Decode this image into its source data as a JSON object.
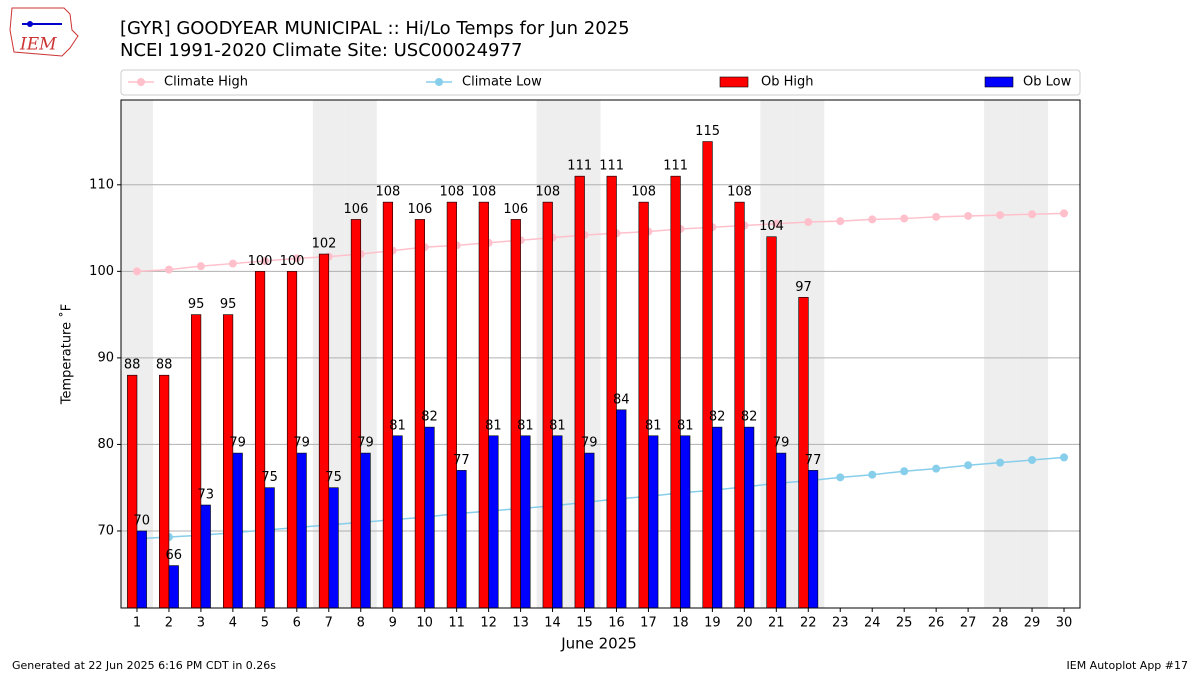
{
  "logo_text": "IEM",
  "chart_data": {
    "type": "bar",
    "title": "[GYR] GOODYEAR MUNICIPAL :: Hi/Lo Temps for Jun 2025",
    "subtitle": "NCEI 1991-2020 Climate Site: USC00024977",
    "x_label": "June 2025",
    "y_label": "Temperature ˚F",
    "footer_left": "Generated at 22 Jun 2025 6:16 PM CDT in 0.26s",
    "footer_right": "IEM Autoplot App #17",
    "x": [
      1,
      2,
      3,
      4,
      5,
      6,
      7,
      8,
      9,
      10,
      11,
      12,
      13,
      14,
      15,
      16,
      17,
      18,
      19,
      20,
      21,
      22,
      23,
      24,
      25,
      26,
      27,
      28,
      29,
      30
    ],
    "xlim": [
      0.5,
      30.5
    ],
    "xticks": [
      1,
      2,
      3,
      4,
      5,
      6,
      7,
      8,
      9,
      10,
      11,
      12,
      13,
      14,
      15,
      16,
      17,
      18,
      19,
      20,
      21,
      22,
      23,
      24,
      25,
      26,
      27,
      28,
      29,
      30
    ],
    "ylim": [
      61.1,
      119.8
    ],
    "yticks": [
      70,
      80,
      90,
      100,
      110
    ],
    "grid": true,
    "shaded_days": [
      1,
      7,
      8,
      14,
      15,
      21,
      22,
      28,
      29
    ],
    "series": [
      {
        "name": "Climate High",
        "type": "line",
        "color": "#ffc0cb",
        "values": [
          100.0,
          100.2,
          100.6,
          100.9,
          101.2,
          101.5,
          101.7,
          102.0,
          102.4,
          102.8,
          103.0,
          103.3,
          103.6,
          103.9,
          104.2,
          104.4,
          104.6,
          104.9,
          105.1,
          105.3,
          105.5,
          105.7,
          105.8,
          106.0,
          106.1,
          106.3,
          106.4,
          106.5,
          106.6,
          106.7
        ]
      },
      {
        "name": "Climate Low",
        "type": "line",
        "color": "#87ceeb",
        "values": [
          69.1,
          69.3,
          69.5,
          69.8,
          70.1,
          70.4,
          70.7,
          71.0,
          71.3,
          71.6,
          72.0,
          72.3,
          72.6,
          72.9,
          73.3,
          73.7,
          74.0,
          74.4,
          74.7,
          75.1,
          75.5,
          75.8,
          76.2,
          76.5,
          76.9,
          77.2,
          77.6,
          77.9,
          78.2,
          78.5
        ]
      },
      {
        "name": "Ob High",
        "type": "bar",
        "color": "#ff0000",
        "values": [
          88,
          88,
          95,
          95,
          100,
          100,
          102,
          106,
          108,
          106,
          108,
          108,
          106,
          108,
          111,
          111,
          108,
          111,
          115,
          108,
          104,
          97,
          null,
          null,
          null,
          null,
          null,
          null,
          null,
          null
        ]
      },
      {
        "name": "Ob Low",
        "type": "bar",
        "color": "#0000ff",
        "values": [
          70,
          66,
          73,
          79,
          75,
          79,
          75,
          79,
          81,
          82,
          77,
          81,
          81,
          81,
          79,
          84,
          81,
          81,
          82,
          82,
          79,
          77,
          null,
          null,
          null,
          null,
          null,
          null,
          null,
          null
        ]
      }
    ]
  }
}
